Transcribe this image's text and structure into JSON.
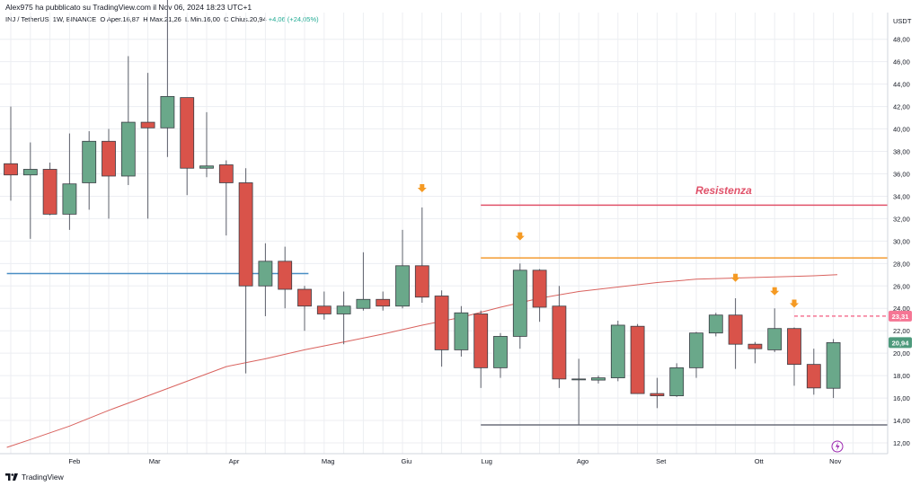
{
  "header": {
    "publisher": "Alex975 ha pubblicato su TradingView.com il Nov 06, 2024 18:23 UTC+1",
    "symbol": "INJ / TetherUS, 1W, BINANCE",
    "ohlc": {
      "open_label": "O",
      "open": "Aper.16,87",
      "high_label": "H",
      "high": "Max.21,26",
      "low_label": "L",
      "low": "Min.16,00",
      "close_label": "C",
      "close": "Chius.20,94",
      "change": "+4,06 (+24,05%)"
    }
  },
  "axis": {
    "currency": "USDT"
  },
  "footer": {
    "brand": "TradingView"
  },
  "chart_data": {
    "type": "candlestick",
    "symbol": "INJ / TetherUS",
    "interval": "1W",
    "exchange": "BINANCE",
    "ylim": [
      11,
      50
    ],
    "y_ticks": [
      "12,00",
      "14,00",
      "16,00",
      "18,00",
      "20,00",
      "22,00",
      "24,00",
      "26,00",
      "28,00",
      "30,00",
      "32,00",
      "34,00",
      "36,00",
      "38,00",
      "40,00",
      "42,00",
      "44,00",
      "46,00",
      "48,00"
    ],
    "y_tick_values": [
      12,
      14,
      16,
      18,
      20,
      22,
      24,
      26,
      28,
      30,
      32,
      34,
      36,
      38,
      40,
      42,
      44,
      46,
      48
    ],
    "x_ticks": [
      {
        "label": "Feb",
        "index": 3.25
      },
      {
        "label": "Mar",
        "index": 7.35
      },
      {
        "label": "Apr",
        "index": 11.4
      },
      {
        "label": "Mag",
        "index": 16.2
      },
      {
        "label": "Giu",
        "index": 20.2
      },
      {
        "label": "Lug",
        "index": 24.3
      },
      {
        "label": "Ago",
        "index": 29.2
      },
      {
        "label": "Set",
        "index": 33.2
      },
      {
        "label": "Ott",
        "index": 38.2
      },
      {
        "label": "Nov",
        "index": 42.1
      }
    ],
    "candles": [
      {
        "o": 36.9,
        "h": 42.0,
        "l": 33.6,
        "c": 35.9
      },
      {
        "o": 35.9,
        "h": 38.8,
        "l": 30.2,
        "c": 36.4
      },
      {
        "o": 36.4,
        "h": 37.0,
        "l": 32.3,
        "c": 32.4
      },
      {
        "o": 32.4,
        "h": 39.6,
        "l": 31.0,
        "c": 35.1
      },
      {
        "o": 35.2,
        "h": 39.8,
        "l": 32.8,
        "c": 38.9
      },
      {
        "o": 38.9,
        "h": 40.0,
        "l": 32.0,
        "c": 35.8
      },
      {
        "o": 35.8,
        "h": 46.5,
        "l": 35.0,
        "c": 40.6
      },
      {
        "o": 40.6,
        "h": 45.0,
        "l": 32.0,
        "c": 40.1
      },
      {
        "o": 40.1,
        "h": 52.0,
        "l": 37.5,
        "c": 42.9
      },
      {
        "o": 42.8,
        "h": 42.8,
        "l": 34.1,
        "c": 36.5
      },
      {
        "o": 36.5,
        "h": 41.5,
        "l": 35.7,
        "c": 36.7
      },
      {
        "o": 36.8,
        "h": 37.2,
        "l": 30.5,
        "c": 35.2
      },
      {
        "o": 35.2,
        "h": 36.5,
        "l": 18.2,
        "c": 26.0
      },
      {
        "o": 26.0,
        "h": 29.8,
        "l": 23.3,
        "c": 28.2
      },
      {
        "o": 28.2,
        "h": 29.5,
        "l": 24.0,
        "c": 25.7
      },
      {
        "o": 25.7,
        "h": 26.0,
        "l": 22.0,
        "c": 24.2
      },
      {
        "o": 24.2,
        "h": 25.5,
        "l": 23.0,
        "c": 23.5
      },
      {
        "o": 23.5,
        "h": 25.5,
        "l": 20.8,
        "c": 24.2
      },
      {
        "o": 24.0,
        "h": 29.0,
        "l": 23.8,
        "c": 24.8
      },
      {
        "o": 24.8,
        "h": 25.5,
        "l": 23.8,
        "c": 24.2
      },
      {
        "o": 24.2,
        "h": 31.0,
        "l": 24.0,
        "c": 27.8
      },
      {
        "o": 27.8,
        "h": 33.0,
        "l": 24.5,
        "c": 25.0
      },
      {
        "o": 25.1,
        "h": 25.6,
        "l": 18.8,
        "c": 20.3
      },
      {
        "o": 20.3,
        "h": 24.2,
        "l": 19.7,
        "c": 23.6
      },
      {
        "o": 23.5,
        "h": 23.8,
        "l": 16.9,
        "c": 18.7
      },
      {
        "o": 18.7,
        "h": 21.8,
        "l": 17.8,
        "c": 21.5
      },
      {
        "o": 21.5,
        "h": 28.0,
        "l": 20.4,
        "c": 27.4
      },
      {
        "o": 27.4,
        "h": 27.5,
        "l": 22.8,
        "c": 24.1
      },
      {
        "o": 24.2,
        "h": 26.0,
        "l": 16.9,
        "c": 17.7
      },
      {
        "o": 17.7,
        "h": 19.5,
        "l": 13.6,
        "c": 17.7
      },
      {
        "o": 17.6,
        "h": 18.0,
        "l": 17.3,
        "c": 17.8
      },
      {
        "o": 17.8,
        "h": 22.9,
        "l": 17.5,
        "c": 22.5
      },
      {
        "o": 22.4,
        "h": 22.6,
        "l": 16.4,
        "c": 16.4
      },
      {
        "o": 16.4,
        "h": 17.8,
        "l": 15.1,
        "c": 16.2
      },
      {
        "o": 16.2,
        "h": 19.1,
        "l": 16.1,
        "c": 18.7
      },
      {
        "o": 18.7,
        "h": 21.9,
        "l": 17.8,
        "c": 21.8
      },
      {
        "o": 21.8,
        "h": 23.6,
        "l": 21.5,
        "c": 23.4
      },
      {
        "o": 23.4,
        "h": 24.9,
        "l": 18.6,
        "c": 20.8
      },
      {
        "o": 20.8,
        "h": 21.0,
        "l": 19.1,
        "c": 20.4
      },
      {
        "o": 20.3,
        "h": 24.0,
        "l": 20.1,
        "c": 22.2
      },
      {
        "o": 22.2,
        "h": 22.3,
        "l": 17.1,
        "c": 19.0
      },
      {
        "o": 19.0,
        "h": 20.4,
        "l": 16.3,
        "c": 16.9
      },
      {
        "o": 16.87,
        "h": 21.26,
        "l": 16.0,
        "c": 20.94
      }
    ],
    "moving_average": [
      [
        -0.2,
        11.6
      ],
      [
        1,
        12.3
      ],
      [
        3,
        13.5
      ],
      [
        5,
        14.9
      ],
      [
        7,
        16.2
      ],
      [
        9,
        17.5
      ],
      [
        11,
        18.8
      ],
      [
        13,
        19.5
      ],
      [
        15,
        20.3
      ],
      [
        17,
        21.0
      ],
      [
        19,
        21.7
      ],
      [
        21,
        22.5
      ],
      [
        23,
        23.2
      ],
      [
        25,
        24.1
      ],
      [
        27,
        24.9
      ],
      [
        29,
        25.5
      ],
      [
        31,
        25.9
      ],
      [
        33,
        26.3
      ],
      [
        35,
        26.6
      ],
      [
        37,
        26.7
      ],
      [
        39,
        26.8
      ],
      [
        41,
        26.9
      ],
      [
        42.2,
        27.0
      ]
    ],
    "hlines": [
      {
        "name": "blue-support",
        "y": 27.1,
        "x0": -0.2,
        "x1": 15.2,
        "color": "#4a8ec4",
        "dash": false
      },
      {
        "name": "resistance-red",
        "y": 33.2,
        "x0": 24.0,
        "x1": 45.0,
        "color": "#e0526a",
        "dash": false
      },
      {
        "name": "resistance-orange",
        "y": 28.5,
        "x0": 24.0,
        "x1": 45.0,
        "color": "#f39c32",
        "dash": false
      },
      {
        "name": "dashed-pink",
        "y": 23.31,
        "x0": 40.0,
        "x1": 45.0,
        "color": "#f57694",
        "dash": true
      },
      {
        "name": "support-gray",
        "y": 13.6,
        "x0": 24.0,
        "x1": 45.0,
        "color": "#6b6f7a",
        "dash": false
      }
    ],
    "arrows": [
      {
        "index": 21,
        "y": 34.6
      },
      {
        "index": 26,
        "y": 30.3
      },
      {
        "index": 37,
        "y": 26.6
      },
      {
        "index": 39,
        "y": 25.4
      },
      {
        "index": 40,
        "y": 24.3
      }
    ],
    "annotations": [
      {
        "text": "Resistenza",
        "index": 36.4,
        "y": 34.2
      }
    ],
    "price_badges": [
      {
        "label": "23,31",
        "value": 23.31,
        "color": "#f57694"
      },
      {
        "label": "20,94",
        "value": 20.94,
        "color": "#4e9a7c"
      }
    ],
    "colors": {
      "up": "#6aa88a",
      "down": "#d9534a",
      "ma": "#d9625e",
      "arrow": "#f59a23",
      "grid": "#eceef2"
    }
  }
}
